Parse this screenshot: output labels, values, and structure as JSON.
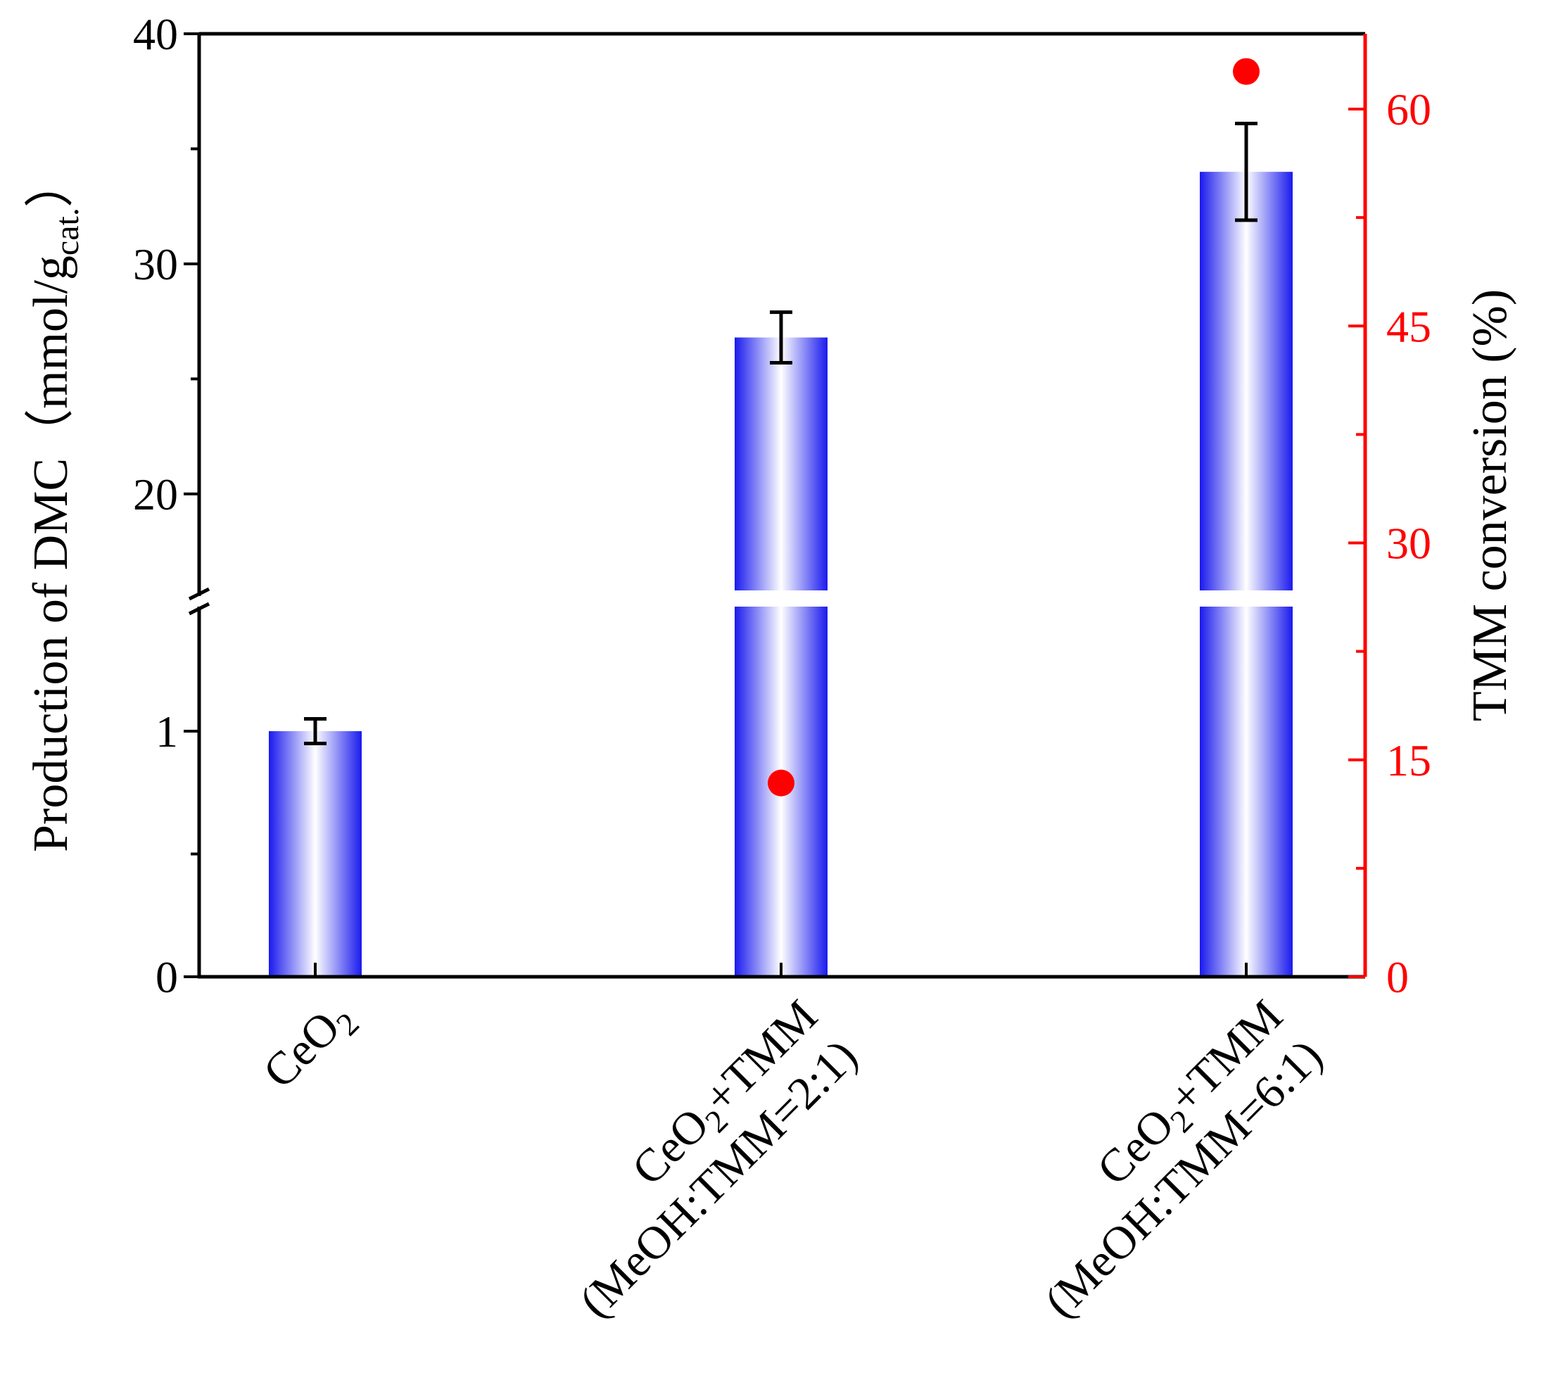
{
  "chart_data": {
    "type": "bar",
    "categories": [
      {
        "line1": "CeO",
        "sub1": "2",
        "line1_after": "",
        "line2": ""
      },
      {
        "line1": "CeO",
        "sub1": "2",
        "line1_after": "+TMM",
        "line2": "(MeOH:TMM=2:1)"
      },
      {
        "line1": "CeO",
        "sub1": "2",
        "line1_after": "+TMM",
        "line2": "(MeOH:TMM=6:1)"
      }
    ],
    "bars": {
      "name": "Production of DMC",
      "values": [
        1.0,
        26.8,
        34.0
      ],
      "errors": [
        0.05,
        1.1,
        2.1
      ],
      "color": "#1a1aee"
    },
    "points": {
      "name": "TMM conversion",
      "values": [
        null,
        13.4,
        62.6
      ],
      "color": "#ff0000"
    },
    "y_left": {
      "label_main": "Production of DMC（mmol/g",
      "label_sub": "cat.",
      "label_end": "）",
      "broken": true,
      "lower_range": [
        0,
        1.5
      ],
      "upper_range": [
        15.5,
        40
      ],
      "lower_ticks": [
        "0",
        "1"
      ],
      "upper_ticks": [
        "20",
        "30",
        "40"
      ]
    },
    "y_right": {
      "label": "TMM conversion (%)",
      "range": [
        0,
        65
      ],
      "ticks": [
        "0",
        "15",
        "30",
        "45",
        "60"
      ],
      "color": "#ff0000"
    }
  }
}
